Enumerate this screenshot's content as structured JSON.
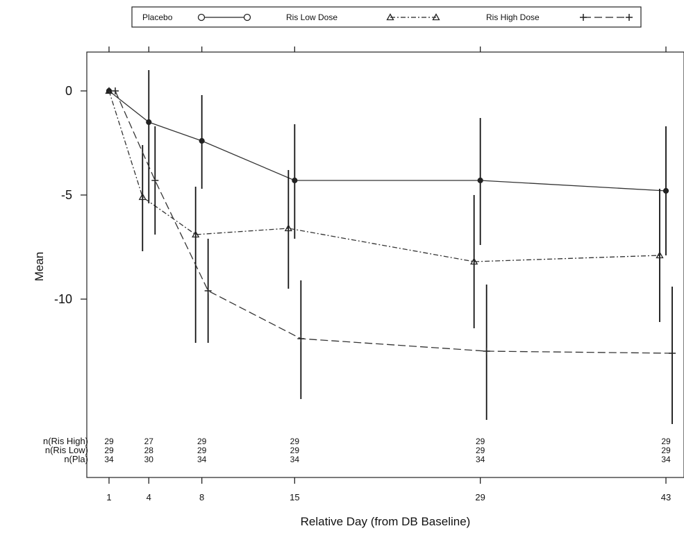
{
  "chart_data": {
    "type": "line",
    "xlabel": "Relative Day (from DB Baseline)",
    "ylabel": "Mean",
    "x": [
      1,
      4,
      8,
      15,
      29,
      43
    ],
    "xlim": [
      -1,
      44
    ],
    "ylim": [
      -18.5,
      1.9
    ],
    "yticks": [
      0,
      -5,
      -10
    ],
    "grid": false,
    "legend_position": "top",
    "series": [
      {
        "name": "Placebo",
        "marker": "circle",
        "line_style": "solid",
        "color": "#333333",
        "y": [
          0,
          -1.5,
          -2.4,
          -4.3,
          -4.3,
          -4.8
        ],
        "err_low": [
          null,
          -5.4,
          -4.7,
          -7.1,
          -7.4,
          -7.9
        ],
        "err_high": [
          null,
          1.0,
          -0.2,
          -1.6,
          -1.3,
          -1.7
        ]
      },
      {
        "name": "Ris Low Dose",
        "marker": "triangle",
        "line_style": "dash-dot",
        "color": "#333333",
        "y": [
          0,
          -5.1,
          -6.9,
          -6.6,
          -8.2,
          -7.9
        ],
        "err_low": [
          null,
          -7.7,
          -12.1,
          -9.5,
          -11.4,
          -11.1
        ],
        "err_high": [
          null,
          -2.6,
          -4.6,
          -3.8,
          -5.0,
          -4.7
        ]
      },
      {
        "name": "Ris High Dose",
        "marker": "plus",
        "line_style": "dashed",
        "color": "#333333",
        "y": [
          0,
          -4.3,
          -9.6,
          -11.9,
          -12.5,
          -12.6
        ],
        "err_low": [
          null,
          -6.9,
          -12.1,
          -14.8,
          -15.8,
          -16.0
        ],
        "err_high": [
          null,
          -1.7,
          -7.1,
          -9.1,
          -9.3,
          -9.4
        ]
      }
    ],
    "n_table": {
      "rows": [
        {
          "label": "n(Ris High)",
          "values": [
            "29",
            "27",
            "29",
            "29",
            "29",
            "29"
          ]
        },
        {
          "label": "n(Ris Low)",
          "values": [
            "29",
            "28",
            "29",
            "29",
            "29",
            "29"
          ]
        },
        {
          "label": "n(Pla)",
          "values": [
            "34",
            "30",
            "34",
            "34",
            "34",
            "34"
          ]
        }
      ]
    }
  }
}
